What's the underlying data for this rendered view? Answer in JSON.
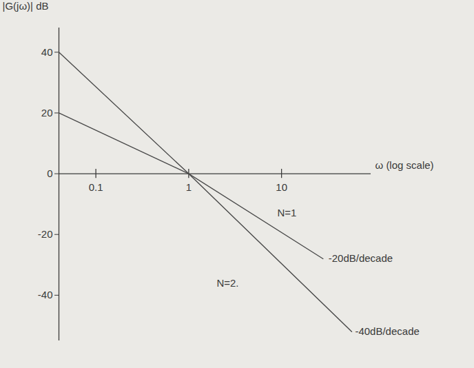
{
  "chart_data": {
    "type": "line",
    "y_label": "|G(jω)| dB",
    "x_label": "ω (log scale)",
    "log": "x",
    "xlim": [
      0.04,
      92
    ],
    "xticks": [
      0.1,
      1,
      10
    ],
    "ylim": [
      -55,
      48
    ],
    "yticks": [
      -40,
      -20,
      0,
      20,
      40
    ],
    "grid": false,
    "series": [
      {
        "name": "N=1",
        "color": "#4a4a4a",
        "x": [
          0.04,
          1,
          28
        ],
        "values": [
          20,
          0,
          -28
        ]
      },
      {
        "name": "N=2",
        "color": "#4a4a4a",
        "x": [
          0.04,
          1,
          57
        ],
        "values": [
          40,
          0,
          -52
        ]
      }
    ],
    "annotations": [
      {
        "text": "N=1",
        "x": 9,
        "y": -13
      },
      {
        "text": "N=2.",
        "x": 2,
        "y": -36
      },
      {
        "text": "-20dB/decade",
        "x": 32,
        "y": -28
      },
      {
        "text": "-40dB/decade",
        "x": 62,
        "y": -52
      }
    ]
  }
}
